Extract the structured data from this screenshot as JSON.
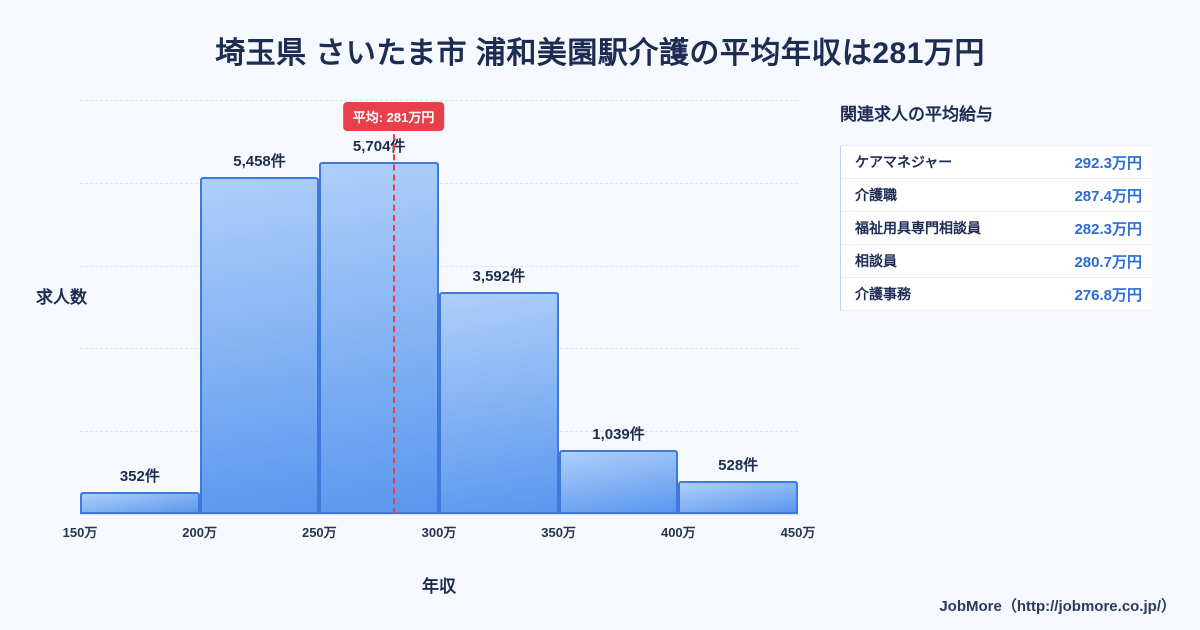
{
  "title": "埼玉県 さいたま市 浦和美園駅介護の平均年収は281万円",
  "chart_data": {
    "type": "bar",
    "subtype": "histogram",
    "xlabel": "年収",
    "ylabel": "求人数",
    "bin_edges": [
      150,
      200,
      250,
      300,
      350,
      400,
      450
    ],
    "bin_edge_labels": [
      "150万",
      "200万",
      "250万",
      "300万",
      "350万",
      "400万",
      "450万"
    ],
    "values": [
      352,
      5458,
      5704,
      3592,
      1039,
      528
    ],
    "bar_labels": [
      "352件",
      "5,458件",
      "5,704件",
      "3,592件",
      "1,039件",
      "528件"
    ],
    "ylim": [
      0,
      6700
    ],
    "gridline_count": 5,
    "grid": "dashed-horizontal",
    "average": {
      "value": 281,
      "label": "平均: 281万円"
    },
    "colors": {
      "bar_top": "#aecff9",
      "bar_bottom": "#5b97ef",
      "bar_border": "#3f79da",
      "average_line": "#e8404b"
    }
  },
  "side_panel": {
    "title": "関連求人の平均給与",
    "items": [
      {
        "label": "ケアマネジャー",
        "value": "292.3万円"
      },
      {
        "label": "介護職",
        "value": "287.4万円"
      },
      {
        "label": "福祉用具専門相談員",
        "value": "282.3万円"
      },
      {
        "label": "相談員",
        "value": "280.7万円"
      },
      {
        "label": "介護事務",
        "value": "276.8万円"
      }
    ]
  },
  "footer": {
    "credit": "JobMore（http://jobmore.co.jp/）"
  }
}
